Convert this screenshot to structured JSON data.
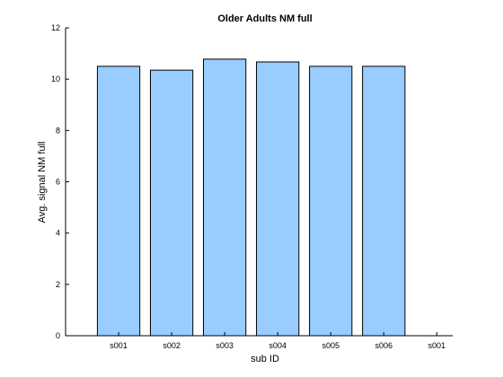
{
  "chart_data": {
    "type": "bar",
    "title": "Older Adults NM full",
    "xlabel": "sub ID",
    "ylabel": "Avg. signal NM full",
    "categories": [
      "s001",
      "s002",
      "s003",
      "s004",
      "s005",
      "s006"
    ],
    "values": [
      10.5,
      10.35,
      10.78,
      10.67,
      10.5,
      10.5
    ],
    "x_tick_labels": [
      "s001",
      "s002",
      "s003",
      "s004",
      "s005",
      "s006",
      "s001"
    ],
    "y_ticks": [
      0,
      2,
      4,
      6,
      8,
      10,
      12
    ],
    "ylim": [
      0,
      12
    ],
    "bar_color": "#99ccff",
    "bar_edge_color": "#000000",
    "grid": false,
    "legend": false
  }
}
